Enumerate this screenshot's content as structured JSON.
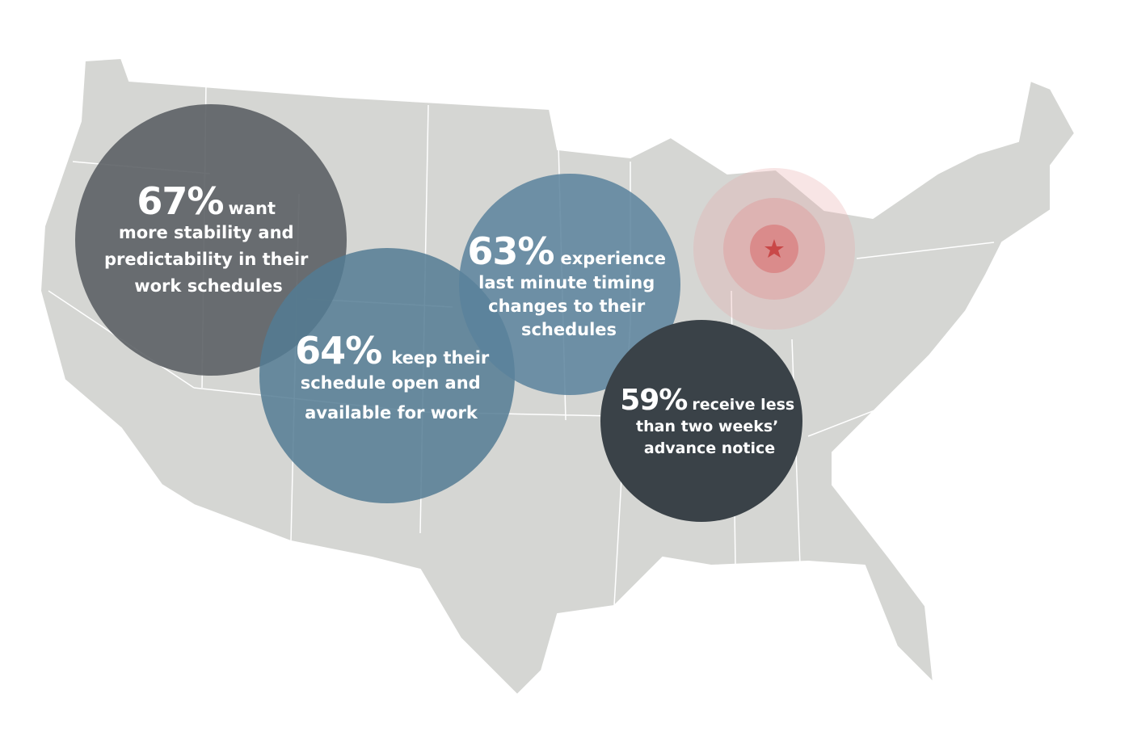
{
  "stats": [
    {
      "percent": "67%",
      "lines": [
        "want",
        "more stability and",
        "predictability in their",
        "work schedules"
      ]
    },
    {
      "percent": "64%",
      "lines": [
        "keep their",
        "schedule open and",
        "available for work"
      ]
    },
    {
      "percent": "63%",
      "lines": [
        "experience",
        "last minute timing",
        "changes to their",
        "schedules"
      ]
    },
    {
      "percent": "59%",
      "lines": [
        "receive less",
        "than two weeks’",
        "advance notice"
      ]
    }
  ]
}
